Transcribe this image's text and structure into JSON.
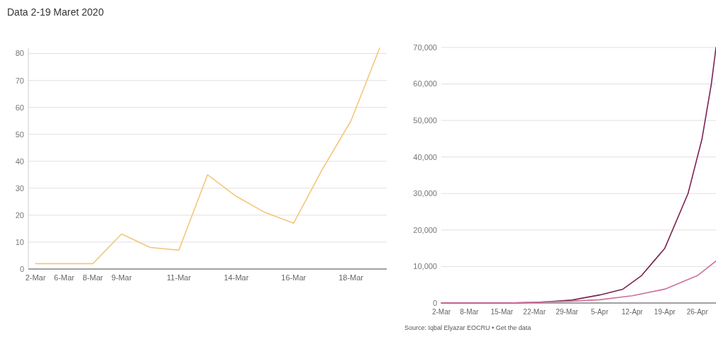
{
  "chart_data": [
    {
      "type": "line",
      "title": "Data 2-19 Maret 2020",
      "categories": [
        "2-Mar",
        "6-Mar",
        "8-Mar",
        "9-Mar",
        null,
        "11-Mar",
        null,
        "14-Mar",
        null,
        "16-Mar",
        null,
        "18-Mar",
        null
      ],
      "series": [
        {
          "color": "#f3c77c",
          "values": [
            2,
            2,
            2,
            13,
            8,
            7,
            35,
            27,
            21,
            17,
            37,
            55,
            82
          ]
        }
      ],
      "ylim": [
        0,
        82
      ],
      "yticks": [
        0,
        10,
        20,
        30,
        40,
        50,
        60,
        70,
        80
      ],
      "grid": "y",
      "marker": "none",
      "line_style": "solid"
    },
    {
      "type": "line",
      "annotations": [
        "Source: Iqbal Elyazar EOCRU • Get the data"
      ],
      "xlim": [
        "2020-03-02",
        "2020-04-30"
      ],
      "xticks": [
        {
          "value": "2020-03-02",
          "label": "2-Mar"
        },
        {
          "value": "2020-03-08",
          "label": "8-Mar"
        },
        {
          "value": "2020-03-15",
          "label": "15-Mar"
        },
        {
          "value": "2020-03-22",
          "label": "22-Mar"
        },
        {
          "value": "2020-03-29",
          "label": "29-Mar"
        },
        {
          "value": "2020-04-05",
          "label": "5-Apr"
        },
        {
          "value": "2020-04-12",
          "label": "12-Apr"
        },
        {
          "value": "2020-04-19",
          "label": "19-Apr"
        },
        {
          "value": "2020-04-26",
          "label": "26-Apr"
        }
      ],
      "series": [
        {
          "color": "#7b2352",
          "x": [
            "2020-03-02",
            "2020-03-09",
            "2020-03-16",
            "2020-03-23",
            "2020-03-30",
            "2020-04-05",
            "2020-04-10",
            "2020-04-14",
            "2020-04-17",
            "2020-04-19",
            "2020-04-24",
            "2020-04-27",
            "2020-04-29",
            "2020-04-30"
          ],
          "values": [
            0,
            0,
            0,
            200,
            800,
            2200,
            3800,
            7500,
            12000,
            15000,
            30000,
            45000,
            60000,
            70000
          ]
        },
        {
          "color": "#d0709e",
          "x": [
            "2020-03-02",
            "2020-03-16",
            "2020-03-30",
            "2020-04-05",
            "2020-04-12",
            "2020-04-19",
            "2020-04-26",
            "2020-04-30"
          ],
          "values": [
            0,
            0,
            500,
            900,
            2000,
            3800,
            7500,
            11500
          ]
        }
      ],
      "ylim": [
        0,
        70000
      ],
      "yticks": [
        {
          "value": 0,
          "label": "0"
        },
        {
          "value": 10000,
          "label": "10,000"
        },
        {
          "value": 20000,
          "label": "20,000"
        },
        {
          "value": 30000,
          "label": "30,000"
        },
        {
          "value": 40000,
          "label": "40,000"
        },
        {
          "value": 50000,
          "label": "50,000"
        },
        {
          "value": 60000,
          "label": "60,000"
        },
        {
          "value": 70000,
          "label": "70,000"
        }
      ],
      "grid": "y",
      "marker": "none",
      "line_style": "solid"
    }
  ]
}
